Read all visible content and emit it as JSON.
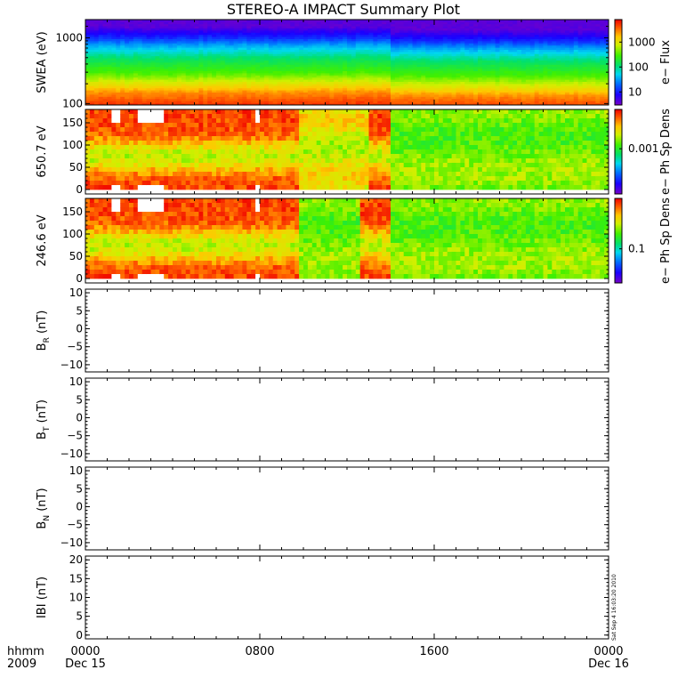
{
  "chart_data": {
    "title": "STEREO-A IMPACT Summary Plot",
    "x_axis": {
      "row1_label": "hhmm",
      "row2_label": "2009",
      "ticks": [
        "0000",
        "0800",
        "1600",
        "0000"
      ],
      "date_labels": [
        "Dec 15",
        "",
        "",
        "Dec 16"
      ],
      "range_hours": [
        0,
        24
      ],
      "tick_hours": [
        0,
        8,
        16,
        24
      ]
    },
    "stamp": "Sat Sep  4 16:03:20 2010",
    "panels": [
      {
        "type": "heatmap",
        "ylabel": "SWEA (eV)",
        "log_y": true,
        "ylim": [
          95,
          1900
        ],
        "y_ticks": [
          "1000",
          "100"
        ],
        "y_tick_values": [
          1000,
          100
        ],
        "colorbar": {
          "label": "e− Flux",
          "log": true,
          "range": [
            3,
            8000
          ],
          "ticks": [
            "1000",
            "100",
            "10"
          ],
          "tick_values": [
            1000,
            100,
            10
          ]
        },
        "profile_by_energy": [
          {
            "energy": 100,
            "flux": 5000
          },
          {
            "energy": 150,
            "flux": 2500
          },
          {
            "energy": 200,
            "flux": 1000
          },
          {
            "energy": 300,
            "flux": 300
          },
          {
            "energy": 500,
            "flux": 120
          },
          {
            "energy": 800,
            "flux": 30
          },
          {
            "energy": 1000,
            "flux": 12
          },
          {
            "energy": 1500,
            "flux": 4
          }
        ]
      },
      {
        "type": "heatmap",
        "ylabel": "650.7 eV",
        "ylim": [
          -10,
          180
        ],
        "y_ticks": [
          "150",
          "100",
          "50",
          "0"
        ],
        "y_tick_values": [
          150,
          100,
          50,
          0
        ],
        "colorbar": {
          "label": "e− Ph Sp Dens",
          "log": true,
          "range": [
            2e-05,
            0.03
          ],
          "ticks": [
            "0.001"
          ],
          "tick_values": [
            0.001
          ]
        },
        "time_segments": [
          {
            "start_h": 0,
            "end_h": 9.8,
            "level": "high",
            "note": "red/orange at all pitch angles, yellow-green near 90°"
          },
          {
            "start_h": 9.8,
            "end_h": 13.0,
            "level": "medium",
            "note": "yellow-green with orange patch"
          },
          {
            "start_h": 13.0,
            "end_h": 14.0,
            "level": "high",
            "note": "red patch at 100-175°"
          },
          {
            "start_h": 14.0,
            "end_h": 24,
            "level": "low",
            "note": "green/yellow-green"
          }
        ],
        "data_gaps_h": [
          [
            1.3,
            1.55
          ],
          [
            2.4,
            3.6
          ],
          [
            7.75,
            7.95
          ]
        ]
      },
      {
        "type": "heatmap",
        "ylabel": "246.6 eV",
        "ylim": [
          -10,
          180
        ],
        "y_ticks": [
          "150",
          "100",
          "50",
          "0"
        ],
        "y_tick_values": [
          150,
          100,
          50,
          0
        ],
        "colorbar": {
          "label": "e− Ph Sp Dens",
          "log": true,
          "range": [
            0.01,
            3
          ],
          "ticks": [
            "0.1"
          ],
          "tick_values": [
            0.1
          ]
        },
        "time_segments": [
          {
            "start_h": 0,
            "end_h": 9.8,
            "level": "high",
            "note": "red at 110-175° and 0-50°, yellow-green near 90°"
          },
          {
            "start_h": 9.8,
            "end_h": 12.6,
            "level": "low",
            "note": "yellow-green"
          },
          {
            "start_h": 12.6,
            "end_h": 14.0,
            "level": "high",
            "note": "red patch"
          },
          {
            "start_h": 14.0,
            "end_h": 24,
            "level": "low",
            "note": "green/yellow-green"
          }
        ],
        "data_gaps_h": [
          [
            1.3,
            1.55
          ],
          [
            2.4,
            3.6
          ],
          [
            7.75,
            7.95
          ]
        ]
      },
      {
        "type": "line",
        "ylabel_main": "B",
        "ylabel_sub": "R",
        "ylabel_unit": " (nT)",
        "ylim": [
          -12,
          11
        ],
        "y_ticks": [
          "10",
          "5",
          "0",
          "−5",
          "−10"
        ],
        "y_tick_values": [
          10,
          5,
          0,
          -5,
          -10
        ],
        "values": []
      },
      {
        "type": "line",
        "ylabel_main": "B",
        "ylabel_sub": "T",
        "ylabel_unit": " (nT)",
        "ylim": [
          -12,
          11
        ],
        "y_ticks": [
          "10",
          "5",
          "0",
          "−5",
          "−10"
        ],
        "y_tick_values": [
          10,
          5,
          0,
          -5,
          -10
        ],
        "values": []
      },
      {
        "type": "line",
        "ylabel_main": "B",
        "ylabel_sub": "N",
        "ylabel_unit": " (nT)",
        "ylim": [
          -12,
          11
        ],
        "y_ticks": [
          "10",
          "5",
          "0",
          "−5",
          "−10"
        ],
        "y_tick_values": [
          10,
          5,
          0,
          -5,
          -10
        ],
        "values": []
      },
      {
        "type": "line",
        "ylabel_main": "IBI",
        "ylabel_sub": "",
        "ylabel_unit": " (nT)",
        "ylim": [
          -1,
          21
        ],
        "y_ticks": [
          "20",
          "15",
          "10",
          "5",
          "0"
        ],
        "y_tick_values": [
          20,
          15,
          10,
          5,
          0
        ],
        "values": []
      }
    ]
  }
}
